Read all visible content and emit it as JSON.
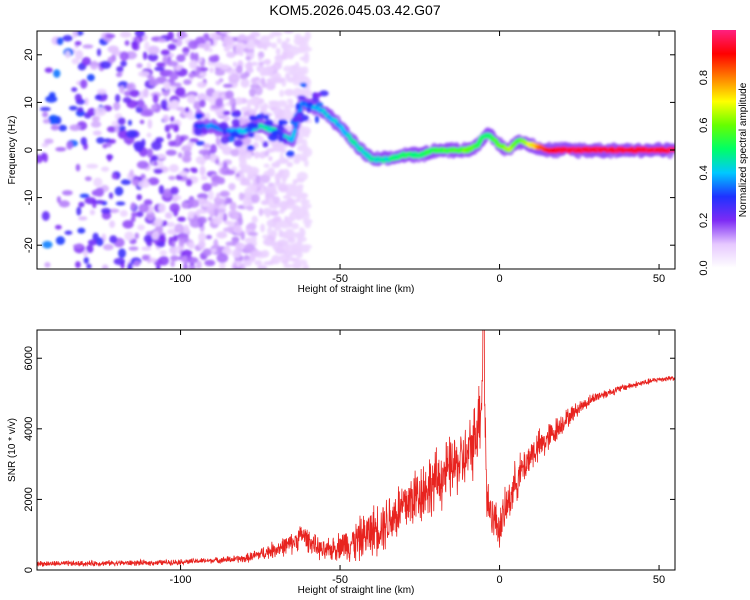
{
  "title": "KOM5.2026.045.03.42.G07",
  "chart_data": [
    {
      "type": "heatmap",
      "xlabel": "Height of straight line (km)",
      "ylabel": "Frequency (Hz)",
      "xlim": [
        -145,
        55
      ],
      "ylim": [
        -25,
        25
      ],
      "x_ticks": [
        -100,
        -50,
        0,
        50
      ],
      "y_ticks": [
        -20,
        -10,
        0,
        10,
        20
      ],
      "colorbar": {
        "label": "Normalized spectral amplitude",
        "range": [
          0,
          1
        ],
        "ticks": [
          0.0,
          0.2,
          0.4,
          0.6,
          0.8
        ],
        "colors": [
          "#ffffff",
          "#e6c8ff",
          "#7d2bf5",
          "#1e32ff",
          "#00c8ff",
          "#00ff66",
          "#66ff00",
          "#ffff00",
          "#ff8000",
          "#ff0000",
          "#ff2080"
        ]
      },
      "ridge": {
        "description": "frequency ridge of signal (x in km, y in Hz, amplitude 0-1)",
        "x": [
          -95,
          -90,
          -85,
          -80,
          -75,
          -70,
          -65,
          -62,
          -58,
          -55,
          -50,
          -45,
          -40,
          -35,
          -30,
          -25,
          -20,
          -15,
          -10,
          -7,
          -5,
          -3,
          0,
          3,
          6,
          10,
          15,
          20,
          30,
          40,
          55
        ],
        "y": [
          5,
          5,
          4,
          4,
          5,
          4,
          2,
          10,
          9,
          8,
          5,
          1,
          -2,
          -2,
          -1,
          -1,
          0,
          0,
          0,
          1,
          3,
          3,
          1,
          0,
          2,
          1,
          0,
          0,
          0,
          0,
          0
        ],
        "amplitude": [
          0.3,
          0.35,
          0.35,
          0.4,
          0.45,
          0.45,
          0.4,
          0.35,
          0.4,
          0.4,
          0.4,
          0.45,
          0.45,
          0.45,
          0.5,
          0.5,
          0.55,
          0.55,
          0.6,
          0.55,
          0.5,
          0.5,
          0.6,
          0.65,
          0.55,
          0.7,
          0.9,
          0.95,
          0.95,
          0.95,
          0.95
        ]
      },
      "noise_region_x": [
        -145,
        -90
      ]
    },
    {
      "type": "line",
      "xlabel": "Height of straight line (km)",
      "ylabel": "SNR (10 * v/v)",
      "xlim": [
        -145,
        55
      ],
      "ylim": [
        0,
        6800
      ],
      "x_ticks": [
        -100,
        -50,
        0,
        50
      ],
      "y_ticks": [
        0,
        2000,
        4000,
        6000
      ],
      "series": [
        {
          "color": "#e8231f",
          "x": [
            -145,
            -130,
            -120,
            -110,
            -100,
            -90,
            -80,
            -75,
            -70,
            -65,
            -62,
            -58,
            -55,
            -50,
            -45,
            -40,
            -35,
            -30,
            -25,
            -20,
            -15,
            -10,
            -8,
            -6,
            -5,
            -4,
            -2,
            0,
            5,
            10,
            15,
            20,
            25,
            30,
            35,
            40,
            45,
            50,
            55
          ],
          "y": [
            180,
            180,
            200,
            200,
            230,
            270,
            320,
            450,
            600,
            750,
            1000,
            700,
            500,
            700,
            800,
            1100,
            1400,
            1800,
            2200,
            2500,
            2900,
            3200,
            3700,
            4500,
            6200,
            2000,
            1500,
            1200,
            2500,
            3300,
            3700,
            4200,
            4600,
            4900,
            5050,
            5200,
            5300,
            5400,
            5450
          ],
          "noise_amplitude": [
            80,
            80,
            80,
            80,
            80,
            80,
            120,
            180,
            250,
            300,
            350,
            300,
            300,
            400,
            600,
            700,
            800,
            900,
            900,
            900,
            900,
            900,
            1000,
            1200,
            800,
            800,
            600,
            600,
            600,
            500,
            450,
            300,
            200,
            150,
            120,
            100,
            90,
            80,
            80
          ]
        }
      ]
    }
  ]
}
